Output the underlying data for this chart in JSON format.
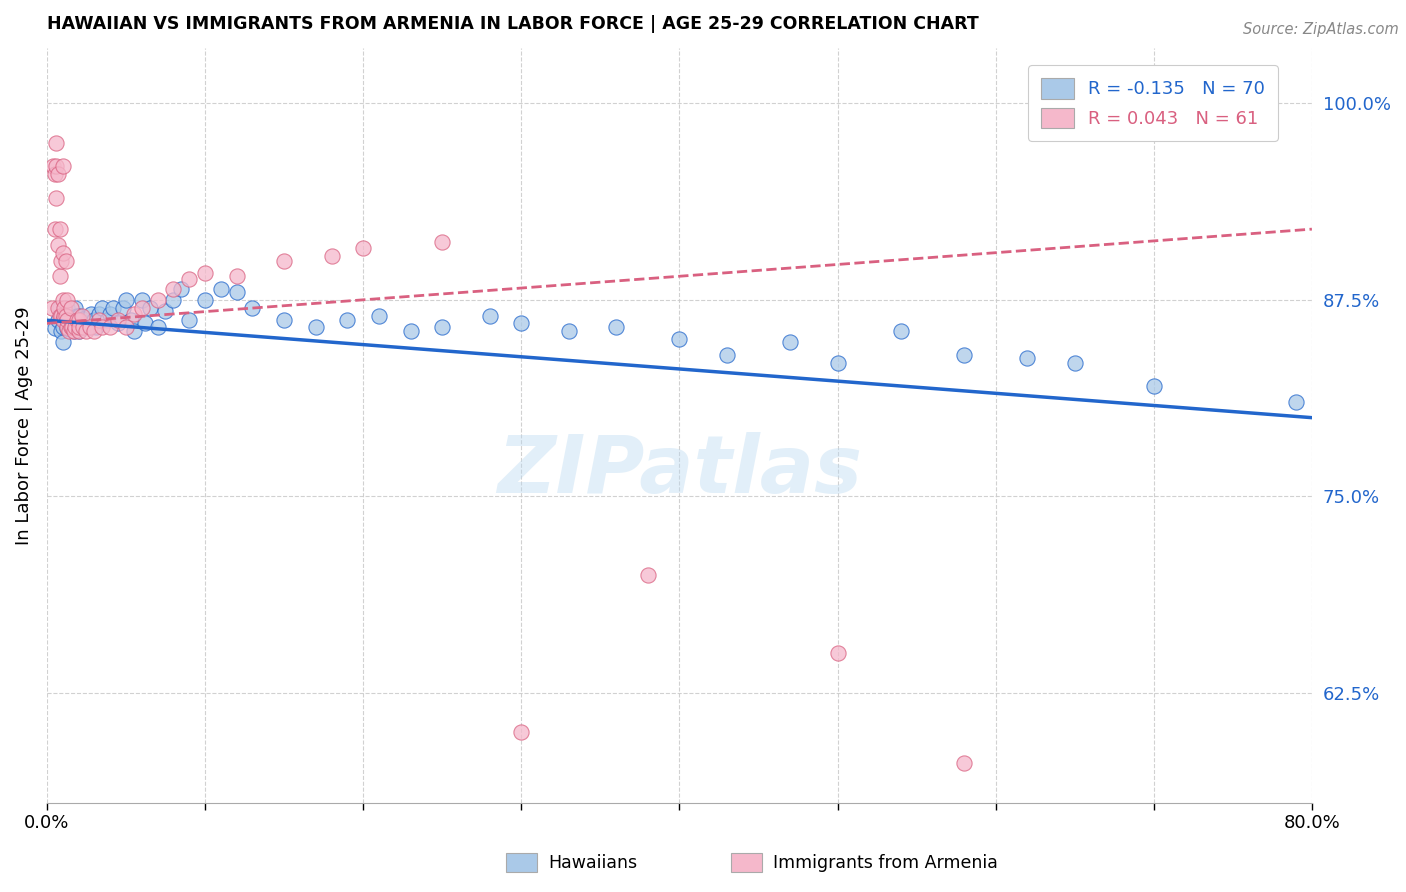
{
  "title": "HAWAIIAN VS IMMIGRANTS FROM ARMENIA IN LABOR FORCE | AGE 25-29 CORRELATION CHART",
  "source": "Source: ZipAtlas.com",
  "ylabel": "In Labor Force | Age 25-29",
  "xmin": 0.0,
  "xmax": 0.8,
  "ymin": 0.555,
  "ymax": 1.035,
  "yticks": [
    0.625,
    0.75,
    0.875,
    1.0
  ],
  "ytick_labels": [
    "62.5%",
    "75.0%",
    "87.5%",
    "100.0%"
  ],
  "xticks": [
    0.0,
    0.1,
    0.2,
    0.3,
    0.4,
    0.5,
    0.6,
    0.7,
    0.8
  ],
  "hawaii_R": -0.135,
  "hawaii_N": 70,
  "armenia_R": 0.043,
  "armenia_N": 61,
  "legend_label_hawaii": "Hawaiians",
  "legend_label_armenia": "Immigrants from Armenia",
  "hawaii_color": "#aac9e8",
  "armenia_color": "#f5b8cb",
  "hawaii_line_color": "#2266cc",
  "armenia_line_color": "#d96080",
  "watermark": "ZIPatlas",
  "hawaii_trend_x0": 0.0,
  "hawaii_trend_y0": 0.862,
  "hawaii_trend_x1": 0.8,
  "hawaii_trend_y1": 0.8,
  "armenia_trend_x0": 0.0,
  "armenia_trend_y0": 0.86,
  "armenia_trend_x1": 0.8,
  "armenia_trend_y1": 0.92,
  "hawaii_scatter_x": [
    0.005,
    0.007,
    0.008,
    0.009,
    0.01,
    0.01,
    0.01,
    0.012,
    0.013,
    0.013,
    0.014,
    0.015,
    0.016,
    0.017,
    0.018,
    0.018,
    0.019,
    0.02,
    0.02,
    0.02,
    0.02,
    0.022,
    0.023,
    0.025,
    0.027,
    0.028,
    0.03,
    0.031,
    0.033,
    0.035,
    0.038,
    0.04,
    0.042,
    0.045,
    0.048,
    0.05,
    0.053,
    0.055,
    0.06,
    0.062,
    0.065,
    0.07,
    0.075,
    0.08,
    0.085,
    0.09,
    0.1,
    0.11,
    0.12,
    0.13,
    0.15,
    0.17,
    0.19,
    0.21,
    0.23,
    0.25,
    0.28,
    0.3,
    0.33,
    0.36,
    0.4,
    0.43,
    0.47,
    0.5,
    0.54,
    0.58,
    0.62,
    0.65,
    0.7,
    0.79
  ],
  "hawaii_scatter_y": [
    0.857,
    0.862,
    0.87,
    0.855,
    0.848,
    0.858,
    0.865,
    0.86,
    0.87,
    0.857,
    0.863,
    0.858,
    0.86,
    0.855,
    0.862,
    0.87,
    0.865,
    0.855,
    0.86,
    0.865,
    0.862,
    0.858,
    0.863,
    0.86,
    0.858,
    0.866,
    0.862,
    0.858,
    0.866,
    0.87,
    0.862,
    0.866,
    0.87,
    0.86,
    0.87,
    0.875,
    0.862,
    0.855,
    0.875,
    0.86,
    0.87,
    0.858,
    0.868,
    0.875,
    0.882,
    0.862,
    0.875,
    0.882,
    0.88,
    0.87,
    0.862,
    0.858,
    0.862,
    0.865,
    0.855,
    0.858,
    0.865,
    0.86,
    0.855,
    0.858,
    0.85,
    0.84,
    0.848,
    0.835,
    0.855,
    0.84,
    0.838,
    0.835,
    0.82,
    0.81
  ],
  "armenia_scatter_x": [
    0.003,
    0.004,
    0.005,
    0.005,
    0.006,
    0.006,
    0.006,
    0.007,
    0.007,
    0.007,
    0.008,
    0.008,
    0.008,
    0.009,
    0.009,
    0.01,
    0.01,
    0.01,
    0.01,
    0.011,
    0.011,
    0.012,
    0.012,
    0.013,
    0.013,
    0.013,
    0.014,
    0.015,
    0.015,
    0.016,
    0.017,
    0.018,
    0.019,
    0.02,
    0.02,
    0.02,
    0.022,
    0.023,
    0.025,
    0.027,
    0.03,
    0.033,
    0.035,
    0.04,
    0.045,
    0.05,
    0.055,
    0.06,
    0.07,
    0.08,
    0.09,
    0.1,
    0.12,
    0.15,
    0.18,
    0.2,
    0.25,
    0.3,
    0.38,
    0.5,
    0.58
  ],
  "armenia_scatter_y": [
    0.87,
    0.96,
    0.955,
    0.92,
    0.94,
    0.96,
    0.975,
    0.87,
    0.91,
    0.955,
    0.865,
    0.89,
    0.92,
    0.865,
    0.9,
    0.862,
    0.875,
    0.905,
    0.96,
    0.865,
    0.87,
    0.865,
    0.9,
    0.858,
    0.862,
    0.875,
    0.855,
    0.858,
    0.87,
    0.858,
    0.855,
    0.858,
    0.862,
    0.855,
    0.862,
    0.858,
    0.865,
    0.858,
    0.855,
    0.858,
    0.855,
    0.862,
    0.858,
    0.858,
    0.862,
    0.858,
    0.866,
    0.87,
    0.875,
    0.882,
    0.888,
    0.892,
    0.89,
    0.9,
    0.903,
    0.908,
    0.912,
    0.6,
    0.7,
    0.65,
    0.58
  ]
}
